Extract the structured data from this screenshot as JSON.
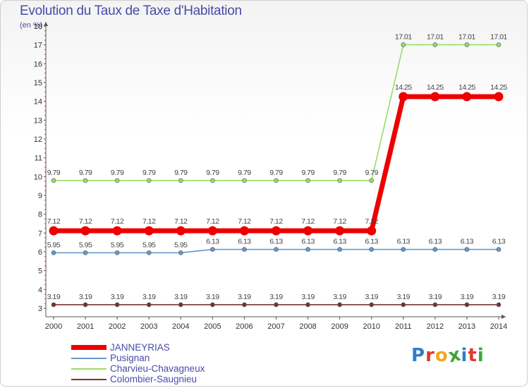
{
  "chart_data": {
    "type": "line",
    "title": "Evolution du Taux de Taxe d'Habitation",
    "unit_label": "(en %)",
    "x": [
      "2000",
      "2001",
      "2002",
      "2003",
      "2004",
      "2005",
      "2006",
      "2007",
      "2008",
      "2009",
      "2010",
      "2011",
      "2012",
      "2013",
      "2014"
    ],
    "ylim": [
      3,
      18
    ],
    "yticks": [
      "3",
      "4",
      "5",
      "6",
      "7",
      "8",
      "9",
      "10",
      "11",
      "12",
      "13",
      "14",
      "15",
      "16",
      "17",
      "18"
    ],
    "grid": false,
    "legend_position": "bottom-left",
    "series": [
      {
        "name": "JANNEYRIAS",
        "color": "#ee0000",
        "emphasis": true,
        "values": [
          7.12,
          7.12,
          7.12,
          7.12,
          7.12,
          7.12,
          7.12,
          7.12,
          7.12,
          7.12,
          7.12,
          14.25,
          14.25,
          14.25,
          14.25
        ],
        "labels": [
          "7.12",
          "7.12",
          "7.12",
          "7.12",
          "7.12",
          "7.12",
          "7.12",
          "7.12",
          "7.12",
          "7.12",
          "7.12",
          "14.25",
          "14.25",
          "14.25",
          "14.25"
        ]
      },
      {
        "name": "Pusignan",
        "color": "#6699cc",
        "emphasis": false,
        "values": [
          5.95,
          5.95,
          5.95,
          5.95,
          5.95,
          6.13,
          6.13,
          6.13,
          6.13,
          6.13,
          6.13,
          6.13,
          6.13,
          6.13,
          6.13
        ],
        "labels": [
          "5.95",
          "5.95",
          "5.95",
          "5.95",
          "5.95",
          "6.13",
          "6.13",
          "6.13",
          "6.13",
          "6.13",
          "6.13",
          "6.13",
          "6.13",
          "6.13",
          "6.13"
        ]
      },
      {
        "name": "Charvieu-Chavagneux",
        "color": "#99dd66",
        "emphasis": false,
        "values": [
          9.79,
          9.79,
          9.79,
          9.79,
          9.79,
          9.79,
          9.79,
          9.79,
          9.79,
          9.79,
          9.79,
          17.01,
          17.01,
          17.01,
          17.01
        ],
        "labels": [
          "9.79",
          "9.79",
          "9.79",
          "9.79",
          "9.79",
          "9.79",
          "9.79",
          "9.79",
          "9.79",
          "9.79",
          "9.79",
          "17.01",
          "17.01",
          "17.01",
          "17.01"
        ]
      },
      {
        "name": "Colombier-Saugnieu",
        "color": "#773333",
        "emphasis": false,
        "values": [
          3.19,
          3.19,
          3.19,
          3.19,
          3.19,
          3.19,
          3.19,
          3.19,
          3.19,
          3.19,
          3.19,
          3.19,
          3.19,
          3.19,
          3.19
        ],
        "labels": [
          "3.19",
          "3.19",
          "3.19",
          "3.19",
          "3.19",
          "3.19",
          "3.19",
          "3.19",
          "3.19",
          "3.19",
          "3.19",
          "3.19",
          "3.19",
          "3.19",
          "3.19"
        ]
      }
    ]
  },
  "brand": {
    "text": "Proxiti",
    "colors": [
      "#2f7fc8",
      "#e03a2f",
      "#f2a81d",
      "#3aa63a",
      "#2f7fc8",
      "#e03a2f",
      "#3aa63a"
    ]
  }
}
